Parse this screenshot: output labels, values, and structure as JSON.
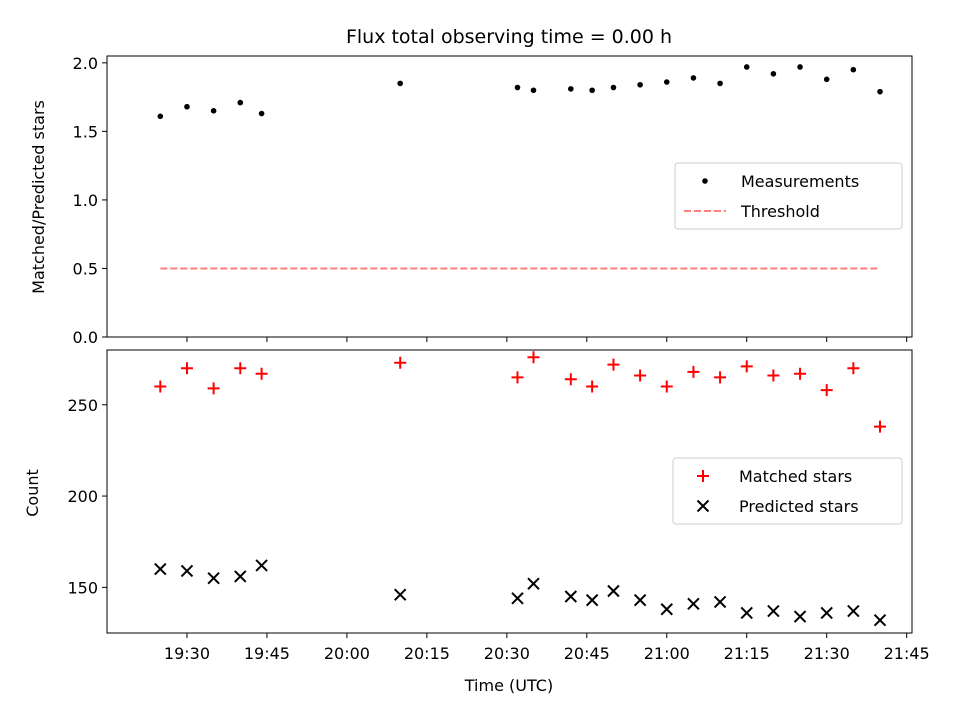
{
  "chart_data": [
    {
      "type": "scatter",
      "title": "Flux total observing time = 0.00 h",
      "xlabel": "",
      "ylabel": "Matched/Predicted stars",
      "xlim": [
        "19:15",
        "21:46"
      ],
      "ylim": [
        0,
        2.05
      ],
      "yticks": [
        0.0,
        0.5,
        1.0,
        1.5,
        2.0
      ],
      "ytick_labels": [
        "0.0",
        "0.5",
        "1.0",
        "1.5",
        "2.0"
      ],
      "legend_placement": "center-right",
      "series": [
        {
          "name": "Measurements",
          "marker": "dot",
          "color": "#000000",
          "points": [
            {
              "x": "19:25",
              "y": 1.61
            },
            {
              "x": "19:30",
              "y": 1.68
            },
            {
              "x": "19:35",
              "y": 1.65
            },
            {
              "x": "19:40",
              "y": 1.71
            },
            {
              "x": "19:44",
              "y": 1.63
            },
            {
              "x": "20:10",
              "y": 1.85
            },
            {
              "x": "20:32",
              "y": 1.82
            },
            {
              "x": "20:35",
              "y": 1.8
            },
            {
              "x": "20:42",
              "y": 1.81
            },
            {
              "x": "20:46",
              "y": 1.8
            },
            {
              "x": "20:50",
              "y": 1.82
            },
            {
              "x": "20:55",
              "y": 1.84
            },
            {
              "x": "21:00",
              "y": 1.86
            },
            {
              "x": "21:05",
              "y": 1.89
            },
            {
              "x": "21:10",
              "y": 1.85
            },
            {
              "x": "21:15",
              "y": 1.97
            },
            {
              "x": "21:20",
              "y": 1.92
            },
            {
              "x": "21:25",
              "y": 1.97
            },
            {
              "x": "21:30",
              "y": 1.88
            },
            {
              "x": "21:35",
              "y": 1.95
            },
            {
              "x": "21:40",
              "y": 1.79
            }
          ]
        },
        {
          "name": "Threshold",
          "marker": "dashed-line",
          "color": "#ff7f7f",
          "points": [
            {
              "x": "19:25",
              "y": 0.5
            },
            {
              "x": "21:40",
              "y": 0.5
            }
          ]
        }
      ]
    },
    {
      "type": "scatter",
      "title": "",
      "xlabel": "Time (UTC)",
      "ylabel": "Count",
      "xlim": [
        "19:15",
        "21:46"
      ],
      "ylim": [
        125,
        280
      ],
      "yticks": [
        150,
        200,
        250
      ],
      "ytick_labels": [
        "150",
        "200",
        "250"
      ],
      "xticks": [
        "19:30",
        "19:45",
        "20:00",
        "20:15",
        "20:30",
        "20:45",
        "21:00",
        "21:15",
        "21:30",
        "21:45"
      ],
      "xtick_labels": [
        "19:30",
        "19:45",
        "20:00",
        "20:15",
        "20:30",
        "20:45",
        "21:00",
        "21:15",
        "21:30",
        "21:45"
      ],
      "legend_placement": "center-right",
      "series": [
        {
          "name": "Matched stars",
          "marker": "plus",
          "color": "#ff0000",
          "points": [
            {
              "x": "19:25",
              "y": 260
            },
            {
              "x": "19:30",
              "y": 270
            },
            {
              "x": "19:35",
              "y": 259
            },
            {
              "x": "19:40",
              "y": 270
            },
            {
              "x": "19:44",
              "y": 267
            },
            {
              "x": "20:10",
              "y": 273
            },
            {
              "x": "20:32",
              "y": 265
            },
            {
              "x": "20:35",
              "y": 276
            },
            {
              "x": "20:42",
              "y": 264
            },
            {
              "x": "20:46",
              "y": 260
            },
            {
              "x": "20:50",
              "y": 272
            },
            {
              "x": "20:55",
              "y": 266
            },
            {
              "x": "21:00",
              "y": 260
            },
            {
              "x": "21:05",
              "y": 268
            },
            {
              "x": "21:10",
              "y": 265
            },
            {
              "x": "21:15",
              "y": 271
            },
            {
              "x": "21:20",
              "y": 266
            },
            {
              "x": "21:25",
              "y": 267
            },
            {
              "x": "21:30",
              "y": 258
            },
            {
              "x": "21:35",
              "y": 270
            },
            {
              "x": "21:40",
              "y": 238
            }
          ]
        },
        {
          "name": "Predicted stars",
          "marker": "x",
          "color": "#000000",
          "points": [
            {
              "x": "19:25",
              "y": 160
            },
            {
              "x": "19:30",
              "y": 159
            },
            {
              "x": "19:35",
              "y": 155
            },
            {
              "x": "19:40",
              "y": 156
            },
            {
              "x": "19:44",
              "y": 162
            },
            {
              "x": "20:10",
              "y": 146
            },
            {
              "x": "20:32",
              "y": 144
            },
            {
              "x": "20:35",
              "y": 152
            },
            {
              "x": "20:42",
              "y": 145
            },
            {
              "x": "20:46",
              "y": 143
            },
            {
              "x": "20:50",
              "y": 148
            },
            {
              "x": "20:55",
              "y": 143
            },
            {
              "x": "21:00",
              "y": 138
            },
            {
              "x": "21:05",
              "y": 141
            },
            {
              "x": "21:10",
              "y": 142
            },
            {
              "x": "21:15",
              "y": 136
            },
            {
              "x": "21:20",
              "y": 137
            },
            {
              "x": "21:25",
              "y": 134
            },
            {
              "x": "21:30",
              "y": 136
            },
            {
              "x": "21:35",
              "y": 137
            },
            {
              "x": "21:40",
              "y": 132
            }
          ]
        }
      ]
    }
  ]
}
